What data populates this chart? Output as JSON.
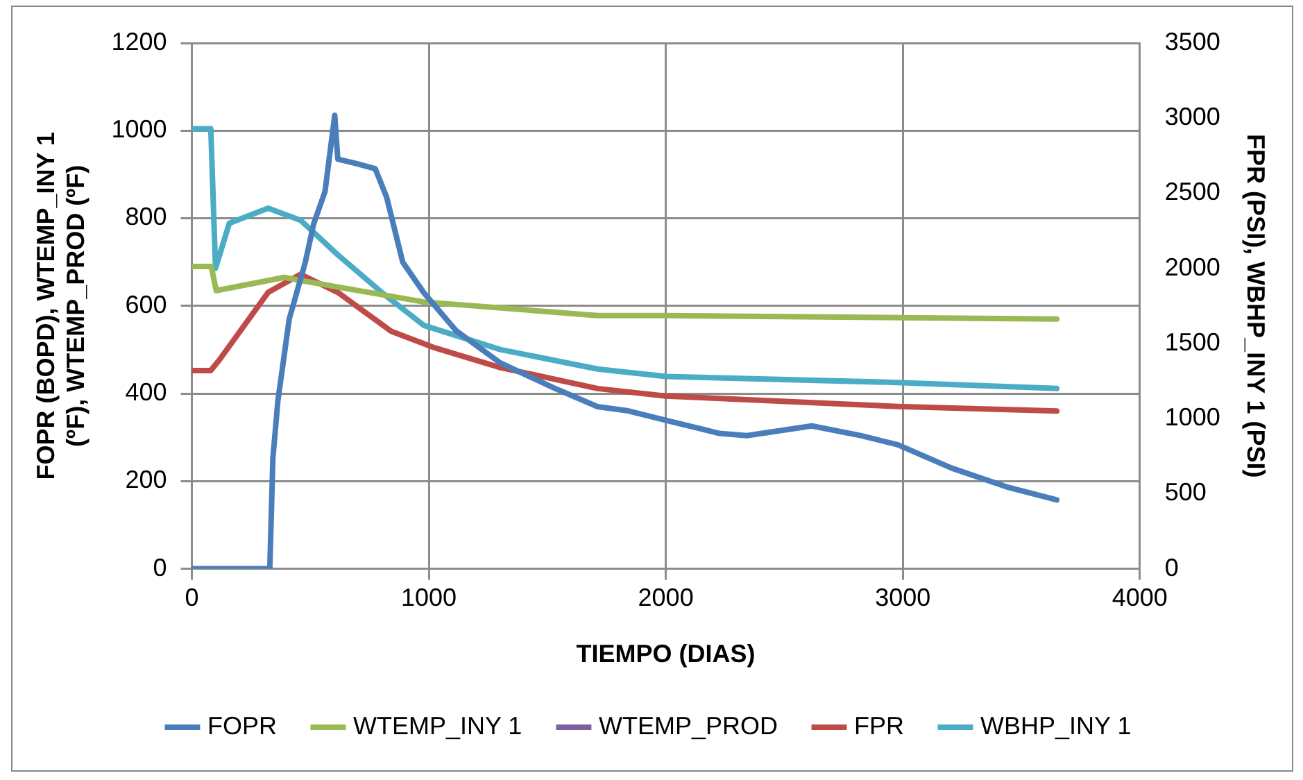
{
  "chart_data": {
    "type": "line",
    "xlabel": "TIEMPO (DIAS)",
    "ylabel": "FOPR (BOPD), WTEMP_INY 1 (ºF), WTEMP_PROD (ºF)",
    "y2label": "FPR (PSI), WBHP_INY 1 (PSI)",
    "xlim": [
      0,
      4000
    ],
    "xticks": [
      0,
      1000,
      2000,
      3000,
      4000
    ],
    "ylim": [
      0,
      1200
    ],
    "yticks": [
      0,
      200,
      400,
      600,
      800,
      1000,
      1200
    ],
    "y2lim": [
      0,
      3500
    ],
    "y2ticks": [
      0,
      500,
      1000,
      1500,
      2000,
      2500,
      3000,
      3500
    ],
    "grid": true,
    "legend": "bottom",
    "marker": "none",
    "line_style": "solid",
    "series": [
      {
        "name": "FOPR",
        "color": "#4a7ebb",
        "x": [
          0,
          329,
          342,
          363,
          411,
          479,
          514,
          562,
          603,
          616,
          685,
          774,
          822,
          890,
          979,
          1116,
          1301,
          1527,
          1712,
          1836,
          2000,
          2226,
          2342,
          2616,
          2822,
          2979,
          3205,
          3438,
          3650
        ],
        "values": [
          0,
          0,
          252,
          383,
          570,
          700,
          787,
          861,
          1035,
          935,
          926,
          913,
          848,
          700,
          630,
          543,
          470,
          413,
          370,
          361,
          339,
          309,
          304,
          326,
          304,
          283,
          230,
          187,
          157
        ]
      },
      {
        "name": "WTEMP_INY 1",
        "color": "#98b954",
        "x": [
          0,
          82,
          103,
          390,
          616,
          979,
          1712,
          2000,
          3650
        ],
        "values": [
          690,
          690,
          635,
          665,
          643,
          609,
          578,
          578,
          570
        ]
      },
      {
        "name": "WTEMP_PROD",
        "color": "#7d60a0"
      },
      {
        "name": "FPR",
        "color": "#be4b48",
        "axis": "y2",
        "x": [
          0,
          80,
          116,
          322,
          459,
          616,
          842,
          1027,
          1301,
          1712,
          2000,
          2979,
          3650
        ],
        "values": [
          1320,
          1320,
          1390,
          1840,
          1960,
          1840,
          1580,
          1470,
          1340,
          1200,
          1150,
          1080,
          1050
        ]
      },
      {
        "name": "WBHP_INY 1",
        "color": "#4bacc6",
        "axis": "y2",
        "x": [
          0,
          80,
          100,
          158,
          322,
          459,
          616,
          801,
          979,
          1301,
          1712,
          2000,
          2979,
          3650
        ],
        "values": [
          2930,
          2930,
          2000,
          2300,
          2400,
          2320,
          2090,
          1840,
          1620,
          1460,
          1330,
          1280,
          1240,
          1200
        ]
      }
    ]
  }
}
